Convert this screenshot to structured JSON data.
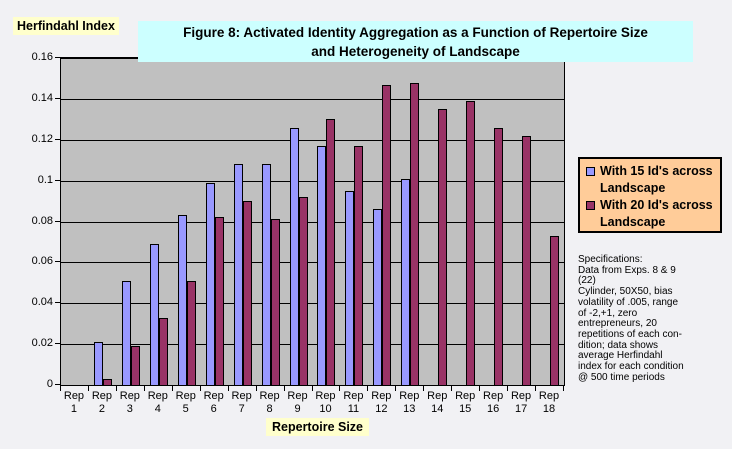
{
  "page": {
    "background": "#F1F1F4"
  },
  "chart_data": {
    "type": "bar",
    "title": "Figure 8: Activated Identity Aggregation as a Function of Repertoire Size and Heterogeneity of Landscape",
    "title_lines": [
      "Figure 8: Activated Identity Aggregation as a Function of Repertoire Size",
      "and Heterogeneity of Landscape"
    ],
    "xlabel": "Repertoire Size",
    "ylabel": "Herfindahl Index",
    "ylim": [
      0,
      0.16
    ],
    "ytick_step": 0.02,
    "ytick_labels": [
      "0",
      "0.02",
      "0.04",
      "0.06",
      "0.08",
      "0.1",
      "0.12",
      "0.14",
      "0.16"
    ],
    "grid": true,
    "legend_position": "right",
    "plot_background": "#C0C0C0",
    "categories": [
      "Rep 1",
      "Rep 2",
      "Rep 3",
      "Rep 4",
      "Rep 5",
      "Rep 6",
      "Rep 7",
      "Rep 8",
      "Rep 9",
      "Rep 10",
      "Rep 11",
      "Rep 12",
      "Rep 13",
      "Rep 14",
      "Rep 15",
      "Rep 16",
      "Rep 17",
      "Rep 18"
    ],
    "series": [
      {
        "name": "With 15 Id's across Landscape",
        "color": "#9999FF",
        "values": [
          0,
          0.021,
          0.051,
          0.069,
          0.083,
          0.099,
          0.108,
          0.108,
          0.126,
          0.117,
          0.095,
          0.086,
          0.101,
          0,
          0,
          0,
          0,
          0
        ]
      },
      {
        "name": "With 20 Id's across Landscape",
        "color": "#993366",
        "values": [
          0,
          0.003,
          0.019,
          0.033,
          0.051,
          0.082,
          0.09,
          0.081,
          0.092,
          0.13,
          0.117,
          0.147,
          0.148,
          0.135,
          0.139,
          0.126,
          0.122,
          0.073
        ]
      }
    ]
  },
  "annotation": {
    "text": "Specifications:\nData from Exps. 8 & 9\n(22)\nCylinder, 50X50, bias\nvolatility of .005, range\nof -2,+1, zero\nentrepreneurs, 20\nrepetitions of each con-\ndition; data shows\naverage Herfindahl\nindex for each condition\n@ 500 time periods"
  },
  "colors": {
    "title_bg": "#CCFFFF",
    "axis_label_bg": "#FFFFCC",
    "legend_bg": "#FFCC99",
    "plot_bg": "#C0C0C0",
    "series_15": "#9999FF",
    "series_20": "#993366"
  }
}
